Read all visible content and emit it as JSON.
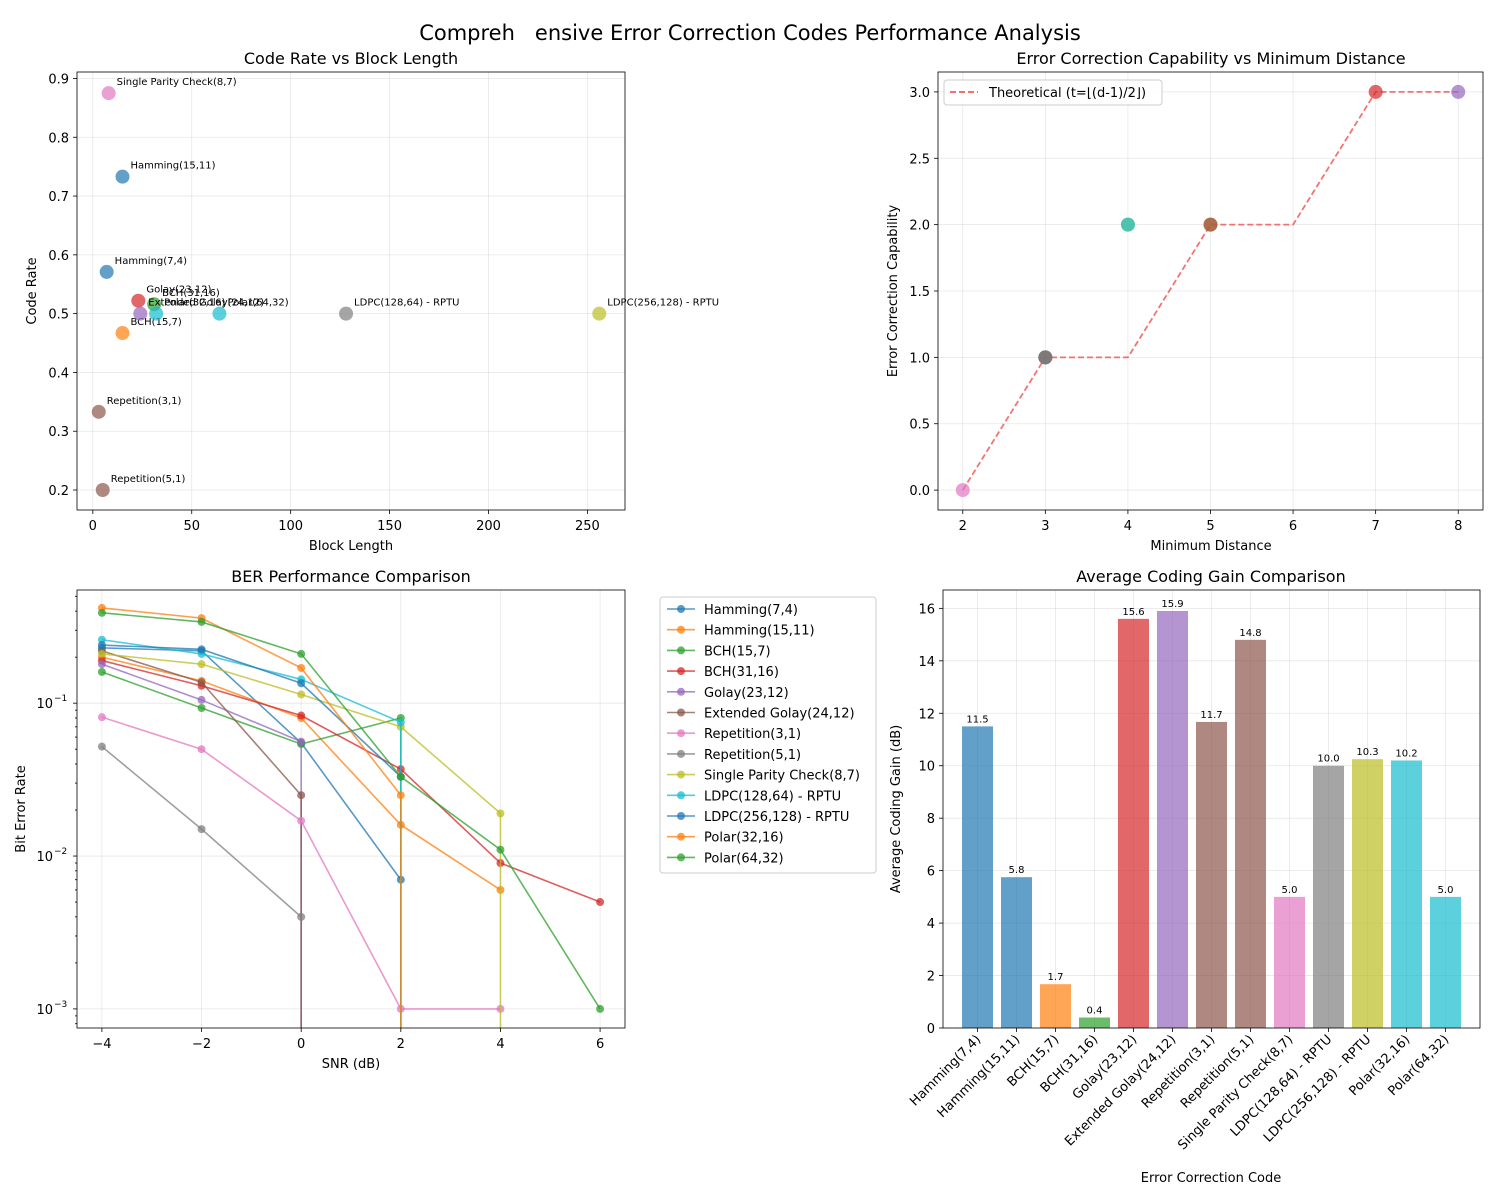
{
  "suptitle": "Compreh   ensive Error Correction Codes Performance Analysis",
  "palette": {
    "Hamming(7,4)": "#1f77b4",
    "Hamming(15,11)": "#ff7f0e",
    "BCH(15,7)": "#2ca02c",
    "BCH(31,16)": "#d62728",
    "Golay(23,12)": "#9467bd",
    "Extended Golay(24,12)": "#8c564b",
    "Repetition(3,1)": "#e377c2",
    "Repetition(5,1)": "#7f7f7f",
    "Single Parity Check(8,7)": "#bcbd22",
    "LDPC(128,64) - RPTU": "#17becf",
    "LDPC(256,128) - RPTU": "#1f77b4",
    "Polar(32,16)": "#ff7f0e",
    "Polar(64,32)": "#2ca02c"
  },
  "chart_data": [
    {
      "id": "rate",
      "type": "scatter",
      "title": "Code Rate vs Block Length",
      "xlabel": "Block Length",
      "ylabel": "Code Rate",
      "xlim": [
        -8,
        269
      ],
      "ylim": [
        0.166,
        0.911
      ],
      "xticks": [
        0,
        50,
        100,
        150,
        200,
        250
      ],
      "yticks": [
        0.2,
        0.3,
        0.4,
        0.5,
        0.6,
        0.7,
        0.8,
        0.9
      ],
      "grid": true,
      "points": [
        {
          "label": "Hamming(7,4)",
          "x": 7,
          "y": 0.571,
          "color": "#1f77b4"
        },
        {
          "label": "Hamming(15,11)",
          "x": 15,
          "y": 0.733,
          "color": "#1f77b4"
        },
        {
          "label": "BCH(15,7)",
          "x": 15,
          "y": 0.467,
          "color": "#ff7f0e"
        },
        {
          "label": "BCH(31,16)",
          "x": 31,
          "y": 0.516,
          "color": "#2ca02c"
        },
        {
          "label": "Golay(23,12)",
          "x": 23,
          "y": 0.522,
          "color": "#d62728"
        },
        {
          "label": "Extended Golay(24,12)",
          "x": 24,
          "y": 0.5,
          "color": "#9467bd"
        },
        {
          "label": "Repetition(3,1)",
          "x": 3,
          "y": 0.333,
          "color": "#8c564b"
        },
        {
          "label": "Repetition(5,1)",
          "x": 5,
          "y": 0.2,
          "color": "#8c564b"
        },
        {
          "label": "Single Parity Check(8,7)",
          "x": 8,
          "y": 0.875,
          "color": "#e377c2"
        },
        {
          "label": "LDPC(128,64) - RPTU",
          "x": 128,
          "y": 0.5,
          "color": "#7f7f7f"
        },
        {
          "label": "LDPC(256,128) - RPTU",
          "x": 256,
          "y": 0.5,
          "color": "#bcbd22"
        },
        {
          "label": "Polar(32,16)",
          "x": 32,
          "y": 0.5,
          "color": "#17becf"
        },
        {
          "label": "Polar(64,32)",
          "x": 64,
          "y": 0.5,
          "color": "#17becf"
        }
      ]
    },
    {
      "id": "capability",
      "type": "scatter",
      "title": "Error Correction Capability vs Minimum Distance",
      "xlabel": "Minimum Distance",
      "ylabel": "Error Correction Capability",
      "xlim": [
        1.7,
        8.3
      ],
      "ylim": [
        -0.15,
        3.15
      ],
      "xticks": [
        2,
        3,
        4,
        5,
        6,
        7,
        8
      ],
      "yticks": [
        0.0,
        0.5,
        1.0,
        1.5,
        2.0,
        2.5,
        3.0
      ],
      "grid": true,
      "legend": "upper-left",
      "theory": {
        "name": "Theoretical (t=⌊(d-1)/2⌋)",
        "x": [
          2,
          3,
          4,
          5,
          6,
          7,
          8
        ],
        "y": [
          0,
          1,
          1,
          2,
          2,
          3,
          3
        ],
        "color": "#f25b5b"
      },
      "points": [
        {
          "x": 2,
          "y": 0,
          "color": "#e377c2"
        },
        {
          "x": 3,
          "y": 1,
          "color": "#1f77b4"
        },
        {
          "x": 3,
          "y": 1,
          "color": "#8c564b"
        },
        {
          "x": 3,
          "y": 1,
          "color": "#7f7f7f"
        },
        {
          "x": 4,
          "y": 2,
          "color": "#bcbd22"
        },
        {
          "x": 4,
          "y": 2,
          "color": "#17becf"
        },
        {
          "x": 5,
          "y": 2,
          "color": "#ff7f0e"
        },
        {
          "x": 5,
          "y": 2,
          "color": "#8c564b"
        },
        {
          "x": 7,
          "y": 3,
          "color": "#d62728"
        },
        {
          "x": 8,
          "y": 3,
          "color": "#9467bd"
        }
      ]
    },
    {
      "id": "ber",
      "type": "line",
      "title": "BER Performance Comparison",
      "xlabel": "SNR (dB)",
      "ylabel": "Bit Error Rate",
      "yscale": "log",
      "xlim": [
        -4.5,
        6.5
      ],
      "ylim": [
        0.00075,
        0.55
      ],
      "xticks": [
        -4,
        -2,
        0,
        2,
        4,
        6
      ],
      "yticks": [
        0.001,
        0.01,
        0.1
      ],
      "yticklabels": [
        "10",
        "10",
        "10"
      ],
      "ytickexps": [
        "−3",
        "−2",
        "−1"
      ],
      "grid": true,
      "legend": "outside-right",
      "series": [
        {
          "name": "Hamming(7,4)",
          "color": "#1f77b4",
          "x": [
            -4,
            -2,
            0,
            2
          ],
          "y": [
            0.23,
            0.22,
            0.055,
            0.007
          ]
        },
        {
          "name": "Hamming(15,11)",
          "color": "#ff7f0e",
          "x": [
            -4,
            -2,
            0,
            2,
            4
          ],
          "y": [
            0.2,
            0.14,
            0.08,
            0.016,
            0.006
          ]
        },
        {
          "name": "BCH(15,7)",
          "color": "#2ca02c",
          "x": [
            -4,
            -2,
            0,
            2,
            2
          ],
          "y": [
            0.16,
            0.093,
            0.054,
            0.08,
            0.0001
          ]
        },
        {
          "name": "BCH(31,16)",
          "color": "#d62728",
          "x": [
            -4,
            -2,
            0,
            2,
            4,
            6
          ],
          "y": [
            0.19,
            0.13,
            0.083,
            0.037,
            0.009,
            0.005
          ]
        },
        {
          "name": "Golay(23,12)",
          "color": "#9467bd",
          "x": [
            -4,
            -2,
            0,
            0
          ],
          "y": [
            0.18,
            0.105,
            0.056,
            0.0001
          ]
        },
        {
          "name": "Extended Golay(24,12)",
          "color": "#8c564b",
          "x": [
            -4,
            -2,
            0,
            0
          ],
          "y": [
            0.22,
            0.137,
            0.025,
            0.0001
          ]
        },
        {
          "name": "Repetition(3,1)",
          "color": "#e377c2",
          "x": [
            -4,
            -2,
            0,
            2,
            4
          ],
          "y": [
            0.081,
            0.05,
            0.017,
            0.001,
            0.001
          ]
        },
        {
          "name": "Repetition(5,1)",
          "color": "#7f7f7f",
          "x": [
            -4,
            -2,
            0
          ],
          "y": [
            0.052,
            0.015,
            0.004
          ]
        },
        {
          "name": "Single Parity Check(8,7)",
          "color": "#bcbd22",
          "x": [
            -4,
            -2,
            0,
            2,
            4,
            4
          ],
          "y": [
            0.21,
            0.18,
            0.114,
            0.07,
            0.019,
            0.0001
          ]
        },
        {
          "name": "LDPC(128,64) - RPTU",
          "color": "#17becf",
          "x": [
            -4,
            -2,
            0,
            2,
            2
          ],
          "y": [
            0.26,
            0.21,
            0.143,
            0.075,
            0.0001
          ]
        },
        {
          "name": "LDPC(256,128) - RPTU",
          "color": "#1f77b4",
          "x": [
            -4,
            -2,
            0,
            2
          ],
          "y": [
            0.24,
            0.225,
            0.135,
            0.033
          ]
        },
        {
          "name": "Polar(32,16)",
          "color": "#ff7f0e",
          "x": [
            -4,
            -2,
            0,
            2,
            2
          ],
          "y": [
            0.42,
            0.36,
            0.17,
            0.025,
            0.0001
          ]
        },
        {
          "name": "Polar(64,32)",
          "color": "#2ca02c",
          "x": [
            -4,
            -2,
            0,
            2,
            4,
            6
          ],
          "y": [
            0.39,
            0.34,
            0.21,
            0.033,
            0.011,
            0.001
          ]
        }
      ]
    },
    {
      "id": "gain",
      "type": "bar",
      "title": "Average Coding Gain Comparison",
      "xlabel": "Error Correction Code",
      "ylabel": "Average Coding Gain (dB)",
      "ylim": [
        0,
        16.7
      ],
      "yticks": [
        0,
        2,
        4,
        6,
        8,
        10,
        12,
        14,
        16
      ],
      "grid": true,
      "categories": [
        "Hamming(7,4)",
        "Hamming(15,11)",
        "BCH(15,7)",
        "BCH(31,16)",
        "Golay(23,12)",
        "Extended Golay(24,12)",
        "Repetition(3,1)",
        "Repetition(5,1)",
        "Single Parity Check(8,7)",
        "LDPC(128,64) - RPTU",
        "LDPC(256,128) - RPTU",
        "Polar(32,16)",
        "Polar(64,32)"
      ],
      "values": [
        11.5,
        5.75,
        1.67,
        0.4,
        15.6,
        15.9,
        11.67,
        14.8,
        5.0,
        10.0,
        10.25,
        10.2,
        5.0
      ],
      "value_labels": [
        "11.5",
        "5.8",
        "1.7",
        "0.4",
        "15.6",
        "15.9",
        "11.7",
        "14.8",
        "5.0",
        "10.0",
        "10.3",
        "10.2",
        "5.0"
      ],
      "colors": [
        "#1f77b4",
        "#1f77b4",
        "#ff7f0e",
        "#2ca02c",
        "#d62728",
        "#9467bd",
        "#8c564b",
        "#8c564b",
        "#e377c2",
        "#7f7f7f",
        "#bcbd22",
        "#17becf",
        "#17becf"
      ]
    }
  ]
}
